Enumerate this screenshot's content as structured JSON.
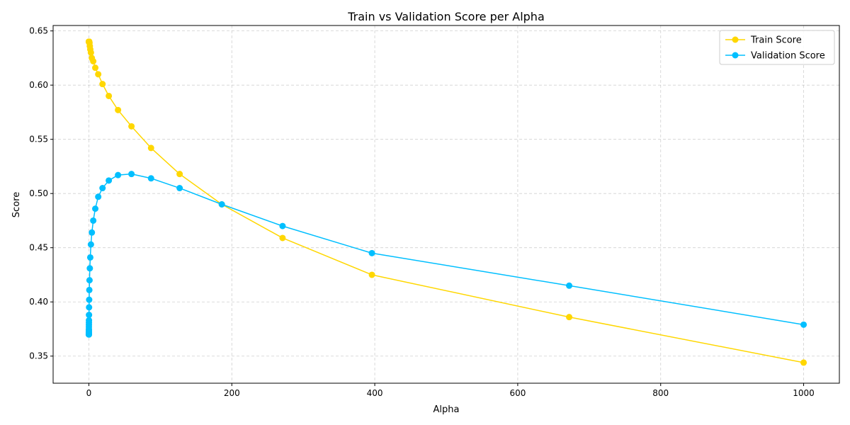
{
  "chart_data": {
    "type": "line",
    "title": "Train vs Validation Score per Alpha",
    "xlabel": "Alpha",
    "ylabel": "Score",
    "xlim": [
      -50,
      1050
    ],
    "ylim": [
      0.325,
      0.655
    ],
    "xticks": [
      0,
      200,
      400,
      600,
      800,
      1000
    ],
    "xtick_labels": [
      "0",
      "200",
      "400",
      "600",
      "800",
      "1000"
    ],
    "yticks": [
      0.35,
      0.4,
      0.45,
      0.5,
      0.55,
      0.6,
      0.65
    ],
    "ytick_labels": [
      "0.35",
      "0.40",
      "0.45",
      "0.50",
      "0.55",
      "0.60",
      "0.65"
    ],
    "grid": true,
    "legend": "top-right",
    "x": [
      0.001,
      0.0015,
      0.0022,
      0.0032,
      0.0046,
      0.0067,
      0.0098,
      0.0143,
      0.0209,
      0.0305,
      0.0445,
      0.065,
      0.095,
      0.139,
      0.203,
      0.296,
      0.433,
      0.632,
      0.924,
      1.35,
      1.97,
      2.88,
      4.2,
      6.14,
      8.97,
      13.1,
      19.1,
      27.9,
      40.8,
      59.6,
      87.0,
      127.0,
      186.0,
      271.0,
      396.0,
      672.0,
      1000.0
    ],
    "series": [
      {
        "name": "Train Score",
        "color": "#FFD700",
        "values": [
          0.64,
          0.64,
          0.64,
          0.64,
          0.64,
          0.64,
          0.64,
          0.64,
          0.64,
          0.64,
          0.64,
          0.64,
          0.64,
          0.64,
          0.64,
          0.64,
          0.64,
          0.64,
          0.639,
          0.636,
          0.633,
          0.63,
          0.625,
          0.622,
          0.616,
          0.61,
          0.601,
          0.59,
          0.577,
          0.562,
          0.542,
          0.518,
          0.49,
          0.459,
          0.425,
          0.386,
          0.344
        ]
      },
      {
        "name": "Validation Score",
        "color": "#00BFFF",
        "values": [
          0.37,
          0.37,
          0.37,
          0.37,
          0.371,
          0.371,
          0.372,
          0.373,
          0.374,
          0.375,
          0.377,
          0.379,
          0.381,
          0.383,
          0.388,
          0.395,
          0.402,
          0.411,
          0.42,
          0.431,
          0.441,
          0.453,
          0.464,
          0.475,
          0.486,
          0.497,
          0.505,
          0.512,
          0.517,
          0.518,
          0.514,
          0.505,
          0.49,
          0.47,
          0.445,
          0.415,
          0.379
        ]
      }
    ]
  }
}
